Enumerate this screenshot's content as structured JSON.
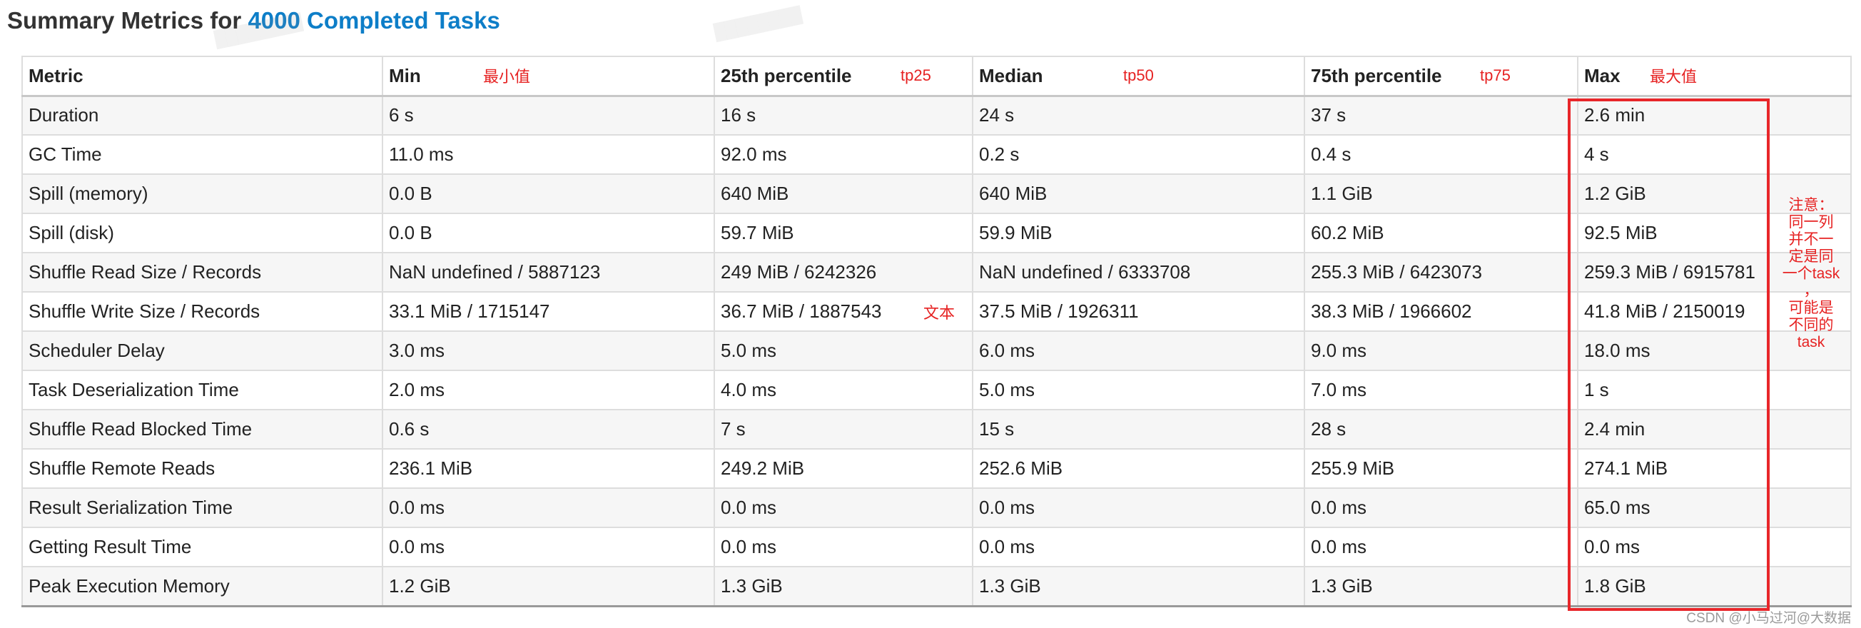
{
  "title": {
    "prefix": "Summary Metrics for ",
    "link": "4000 Completed Tasks"
  },
  "table": {
    "headers": [
      "Metric",
      "Min",
      "25th percentile",
      "Median",
      "75th percentile",
      "Max"
    ],
    "header_notes": [
      "",
      "最小值",
      "tp25",
      "tp50",
      "tp75",
      "最大值"
    ],
    "rows": [
      [
        "Duration",
        "6 s",
        "16 s",
        "24 s",
        "37 s",
        "2.6 min"
      ],
      [
        "GC Time",
        "11.0 ms",
        "92.0 ms",
        "0.2 s",
        "0.4 s",
        "4 s"
      ],
      [
        "Spill (memory)",
        "0.0 B",
        "640 MiB",
        "640 MiB",
        "1.1 GiB",
        "1.2 GiB"
      ],
      [
        "Spill (disk)",
        "0.0 B",
        "59.7 MiB",
        "59.9 MiB",
        "60.2 MiB",
        "92.5 MiB"
      ],
      [
        "Shuffle Read Size / Records",
        "NaN undefined / 5887123",
        "249 MiB / 6242326",
        "NaN undefined / 6333708",
        "255.3 MiB / 6423073",
        "259.3 MiB / 6915781"
      ],
      [
        "Shuffle Write Size / Records",
        "33.1 MiB / 1715147",
        "36.7 MiB / 1887543",
        "37.5 MiB / 1926311",
        "38.3 MiB / 1966602",
        "41.8 MiB / 2150019"
      ],
      [
        "Scheduler Delay",
        "3.0 ms",
        "5.0 ms",
        "6.0 ms",
        "9.0 ms",
        "18.0 ms"
      ],
      [
        "Task Deserialization Time",
        "2.0 ms",
        "4.0 ms",
        "5.0 ms",
        "7.0 ms",
        "1 s"
      ],
      [
        "Shuffle Read Blocked Time",
        "0.6 s",
        "7 s",
        "15 s",
        "28 s",
        "2.4 min"
      ],
      [
        "Shuffle Remote Reads",
        "236.1 MiB",
        "249.2 MiB",
        "252.6 MiB",
        "255.9 MiB",
        "274.1 MiB"
      ],
      [
        "Result Serialization Time",
        "0.0 ms",
        "0.0 ms",
        "0.0 ms",
        "0.0 ms",
        "65.0 ms"
      ],
      [
        "Getting Result Time",
        "0.0 ms",
        "0.0 ms",
        "0.0 ms",
        "0.0 ms",
        "0.0 ms"
      ],
      [
        "Peak Execution Memory",
        "1.2 GiB",
        "1.3 GiB",
        "1.3 GiB",
        "1.3 GiB",
        "1.8 GiB"
      ]
    ]
  },
  "annotations": {
    "text_note": "文本",
    "side_note_lines": [
      "注意：",
      "同一列",
      "并不一",
      "定是同",
      "一个task",
      "，",
      "可能是",
      "不同的",
      "task"
    ],
    "highlight_color": "#e8262a"
  },
  "watermark": "CSDN @小马过河@大数据",
  "colors": {
    "link": "#0d7ec8",
    "annotation": "#e62222",
    "row_stripe": "#f6f6f6"
  }
}
